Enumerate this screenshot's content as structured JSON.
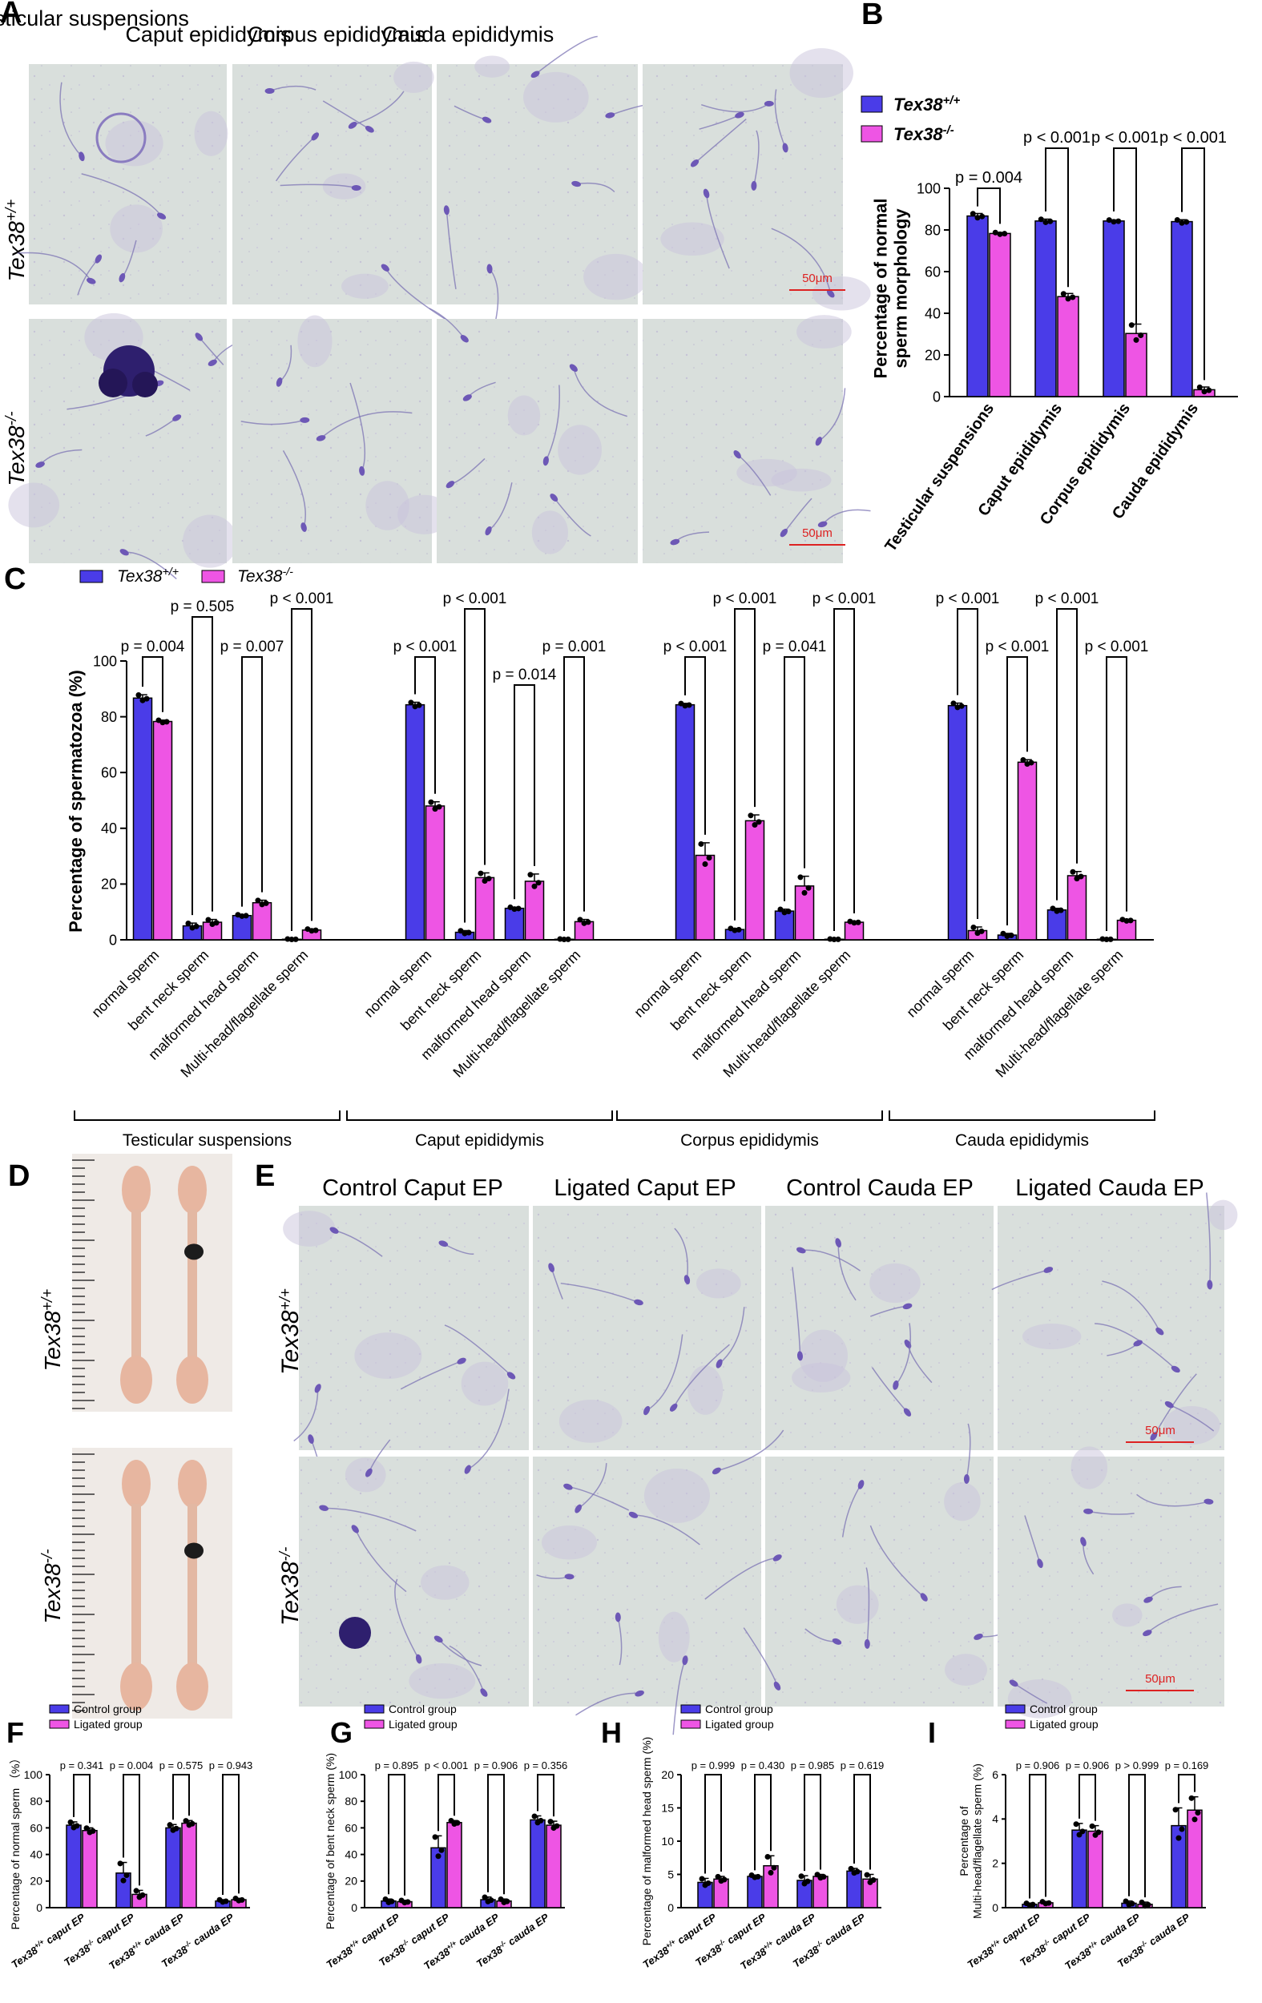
{
  "colors": {
    "wt": "#4a3ce8",
    "ko": "#ee55e4",
    "bar_edge": "#000000",
    "micro_bg": "#d9dfdc",
    "stain": "#6d58b6",
    "testis": "#e7b6a0"
  },
  "panelA": {
    "letter": "A",
    "columns": [
      "Testicular suspensions",
      "Caput epididymis",
      "Corpus epididymis",
      "Cauda epididymis"
    ],
    "row_wt_label": "Tex38+/+",
    "row_ko_label": "Tex38-/-",
    "scale_text": "50μm"
  },
  "panelD": {
    "letter": "D",
    "row_wt_label": "Tex38+/+",
    "row_ko_label": "Tex38-/-"
  },
  "panelE": {
    "letter": "E",
    "columns": [
      "Control Caput EP",
      "Ligated Caput EP",
      "Control Cauda EP",
      "Ligated Cauda EP"
    ],
    "row_wt_label": "Tex38+/+",
    "row_ko_label": "Tex38-/-",
    "scale_text": "50μm"
  },
  "chart_data": [
    {
      "id": "B",
      "letter": "B",
      "type": "bar",
      "ylabel": "Percentage of normal sperm morphology",
      "ylim": [
        0,
        100
      ],
      "yticks": [
        0,
        20,
        40,
        60,
        80,
        100
      ],
      "categories": [
        "Testicular suspensions",
        "Caput epididymis",
        "Corpus epididymis",
        "Cauda epididymis"
      ],
      "legend": [
        "Tex38+/+",
        "Tex38-/-"
      ],
      "series": [
        {
          "name": "Tex38+/+",
          "values": [
            86.7,
            84.3,
            84.3,
            84.0
          ],
          "errors": [
            1.2,
            0.9,
            0.5,
            0.9
          ]
        },
        {
          "name": "Tex38-/-",
          "values": [
            78.3,
            48.0,
            30.3,
            3.3
          ],
          "errors": [
            0.5,
            1.5,
            4.5,
            1.3
          ]
        }
      ],
      "pvalues": [
        "p = 0.004",
        "p < 0.001",
        "p < 0.001",
        "p < 0.001"
      ]
    },
    {
      "id": "C",
      "letter": "C",
      "type": "bar",
      "ylabel": "Percentage of spermatozoa (%)",
      "ylim": [
        0,
        100
      ],
      "yticks": [
        0,
        20,
        40,
        60,
        80,
        100
      ],
      "legend": [
        "Tex38+/+",
        "Tex38-/-"
      ],
      "groups": [
        {
          "name": "Testicular suspensions",
          "categories": [
            "normal sperm",
            "bent neck sperm",
            "malformed head sperm",
            "Multi-head/flagellate sperm"
          ],
          "wt": [
            86.7,
            5.0,
            8.7,
            0.2
          ],
          "ko": [
            78.3,
            6.3,
            13.3,
            3.5
          ],
          "wt_err": [
            1.2,
            1.0,
            0.3,
            0.1
          ],
          "ko_err": [
            0.5,
            1.0,
            0.9,
            0.4
          ],
          "pvalues": [
            "p = 0.004",
            "p = 0.505",
            "p = 0.007",
            "p < 0.001"
          ]
        },
        {
          "name": "Caput epididymis",
          "categories": [
            "normal sperm",
            "bent neck sperm",
            "malformed head sperm",
            "Multi-head/flagellate sperm"
          ],
          "wt": [
            84.3,
            2.7,
            11.3,
            0.2
          ],
          "ko": [
            48.0,
            22.3,
            21.0,
            6.5
          ],
          "wt_err": [
            0.9,
            0.6,
            0.4,
            0.1
          ],
          "ko_err": [
            1.5,
            1.7,
            2.6,
            0.8
          ],
          "pvalues": [
            "p < 0.001",
            "p < 0.001",
            "p = 0.014",
            "p = 0.001"
          ]
        },
        {
          "name": "Corpus epididymis",
          "categories": [
            "normal sperm",
            "bent neck sperm",
            "malformed head sperm",
            "Multi-head/flagellate sperm"
          ],
          "wt": [
            84.3,
            3.7,
            10.3,
            0.2
          ],
          "ko": [
            30.3,
            42.7,
            19.3,
            6.3
          ],
          "wt_err": [
            0.5,
            0.4,
            0.7,
            0.1
          ],
          "ko_err": [
            4.5,
            2.1,
            3.5,
            0.3
          ],
          "pvalues": [
            "p < 0.001",
            "p < 0.001",
            "p = 0.041",
            "p < 0.001"
          ]
        },
        {
          "name": "Cauda epididymis",
          "categories": [
            "normal sperm",
            "bent neck sperm",
            "malformed head sperm",
            "Multi-head/flagellate sperm"
          ],
          "wt": [
            84.0,
            1.7,
            10.7,
            0.2
          ],
          "ko": [
            3.3,
            63.7,
            23.0,
            7.0
          ],
          "wt_err": [
            0.9,
            0.6,
            0.6,
            0.1
          ],
          "ko_err": [
            1.3,
            0.9,
            1.5,
            0.3
          ],
          "pvalues": [
            "p < 0.001",
            "p < 0.001",
            "p < 0.001",
            "p < 0.001"
          ]
        }
      ]
    },
    {
      "id": "F",
      "letter": "F",
      "type": "bar",
      "ylabel": "Percentage of normal sperm （%）",
      "ylim": [
        0,
        100
      ],
      "yticks": [
        0,
        20,
        40,
        60,
        80,
        100
      ],
      "legend": [
        "Control group",
        "Ligated group"
      ],
      "categories": [
        "Tex38+/+ caput EP",
        "Tex38-/- caput EP",
        "Tex38+/+ cauda EP",
        "Tex38-/- cauda EP"
      ],
      "series": [
        {
          "name": "Control group",
          "values": [
            62.0,
            26.0,
            60.0,
            5.0
          ],
          "errors": [
            2.5,
            8.0,
            2.5,
            1.0
          ]
        },
        {
          "name": "Ligated group",
          "values": [
            58.0,
            10.0,
            63.5,
            6.0
          ],
          "errors": [
            2.0,
            3.0,
            2.0,
            1.0
          ]
        }
      ],
      "pvalues": [
        "p = 0.341",
        "p = 0.004",
        "p = 0.575",
        "p = 0.943"
      ]
    },
    {
      "id": "G",
      "letter": "G",
      "type": "bar",
      "ylabel": "Percentage of bent neck sperm (%)",
      "ylim": [
        0,
        100
      ],
      "yticks": [
        0,
        20,
        40,
        60,
        80,
        100
      ],
      "legend": [
        "Control group",
        "Ligated group"
      ],
      "categories": [
        "Tex38+/+ caput EP",
        "Tex38-/- caput EP",
        "Tex38+/+ cauda EP",
        "Tex38-/- cauda EP"
      ],
      "series": [
        {
          "name": "Control group",
          "values": [
            5.0,
            45.0,
            6.0,
            66.0
          ],
          "errors": [
            1.5,
            9.0,
            2.0,
            3.0
          ]
        },
        {
          "name": "Ligated group",
          "values": [
            4.5,
            64.0,
            5.0,
            62.0
          ],
          "errors": [
            1.0,
            1.5,
            1.5,
            3.0
          ]
        }
      ],
      "pvalues": [
        "p = 0.895",
        "p < 0.001",
        "p = 0.906",
        "p = 0.356"
      ]
    },
    {
      "id": "H",
      "letter": "H",
      "type": "bar",
      "ylabel": "Percentage of malformed head sperm (%)",
      "ylim": [
        0,
        20
      ],
      "yticks": [
        0,
        5,
        10,
        15,
        20
      ],
      "legend": [
        "Control group",
        "Ligated group"
      ],
      "categories": [
        "Tex38+/+ caput EP",
        "Tex38-/- caput EP",
        "Tex38+/+ cauda EP",
        "Tex38-/- cauda EP"
      ],
      "series": [
        {
          "name": "Control group",
          "values": [
            3.8,
            4.7,
            4.1,
            5.5
          ],
          "errors": [
            0.6,
            0.2,
            0.7,
            0.4
          ]
        },
        {
          "name": "Ligated group",
          "values": [
            4.3,
            6.3,
            4.7,
            4.3
          ],
          "errors": [
            0.4,
            1.5,
            0.3,
            0.7
          ]
        }
      ],
      "pvalues": [
        "p = 0.999",
        "p = 0.430",
        "p = 0.985",
        "p = 0.619"
      ]
    },
    {
      "id": "I",
      "letter": "I",
      "type": "bar",
      "ylabel": "Percentage of Multi-head/flagellate sperm (%)",
      "ylim": [
        0,
        6
      ],
      "yticks": [
        0,
        2,
        4,
        6
      ],
      "legend": [
        "Control group",
        "Ligated group"
      ],
      "categories": [
        "Tex38+/+ caput EP",
        "Tex38-/- caput EP",
        "Tex38+/+ cauda EP",
        "Tex38-/- cauda EP"
      ],
      "series": [
        {
          "name": "Control group",
          "values": [
            0.15,
            3.5,
            0.2,
            3.7
          ],
          "errors": [
            0.05,
            0.3,
            0.1,
            0.8
          ]
        },
        {
          "name": "Ligated group",
          "values": [
            0.22,
            3.45,
            0.15,
            4.4
          ],
          "errors": [
            0.05,
            0.25,
            0.1,
            0.6
          ]
        }
      ],
      "pvalues": [
        "p = 0.906",
        "p = 0.906",
        "p > 0.999",
        "p = 0.169"
      ]
    }
  ]
}
